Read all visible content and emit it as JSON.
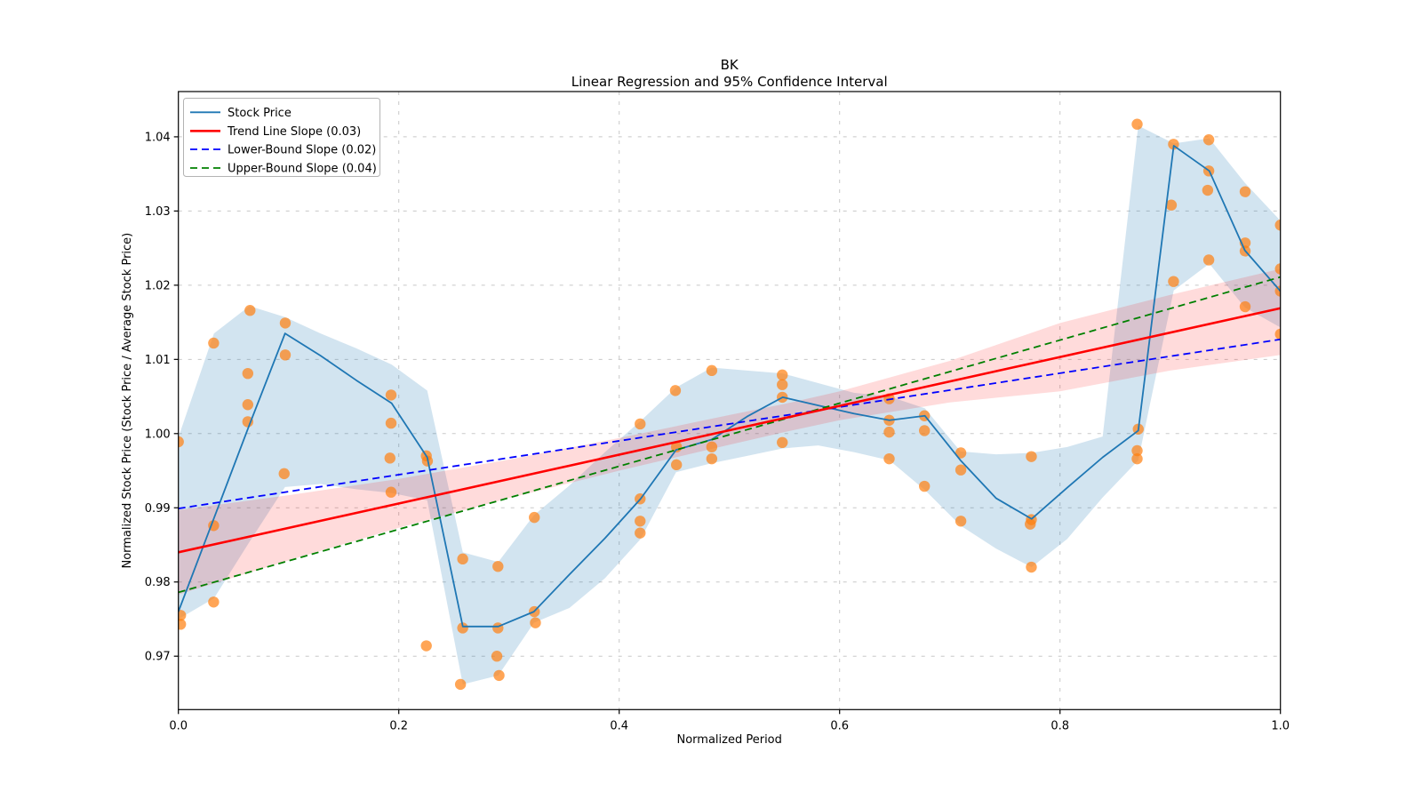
{
  "title": {
    "line1": "BK",
    "line2": "Linear Regression and 95% Confidence Interval"
  },
  "axes": {
    "xlabel": "Normalized Period",
    "ylabel": "Normalized Stock Price (Stock Price / Average Stock Price)",
    "x_tick_labels": [
      "0.0",
      "0.2",
      "0.4",
      "0.6",
      "0.8",
      "1.0"
    ],
    "x_tick_values": [
      0,
      0.2,
      0.4,
      0.6,
      0.8,
      1.0
    ],
    "x_grid_values": [
      0.2,
      0.4,
      0.6,
      0.8
    ],
    "y_tick_labels": [
      "0.97",
      "0.98",
      "0.99",
      "1.00",
      "1.01",
      "1.02",
      "1.03",
      "1.04"
    ],
    "y_tick_values": [
      0.97,
      0.98,
      0.99,
      1.0,
      1.01,
      1.02,
      1.03,
      1.04
    ],
    "xlim": [
      0,
      1
    ],
    "ylim": [
      0.9628,
      1.0461
    ],
    "grid": "dashed"
  },
  "legend": {
    "position": "upper-left",
    "items": [
      {
        "label": "Stock Price",
        "color": "#1f77b4",
        "dash": "solid",
        "width": 1.8
      },
      {
        "label": "Trend Line Slope (0.03)",
        "color": "#ff0000",
        "dash": "solid",
        "width": 2.6
      },
      {
        "label": "Lower-Bound Slope (0.02)",
        "color": "#0000ff",
        "dash": "dashed",
        "width": 1.8
      },
      {
        "label": "Upper-Bound Slope (0.04)",
        "color": "#008000",
        "dash": "dashed",
        "width": 1.8
      }
    ]
  },
  "colors": {
    "stock_line": "#1f77b4",
    "scatter": "#ff7f0e",
    "trend_line": "#ff0000",
    "lower_bound": "#0000ff",
    "upper_bound": "#008000",
    "stock_band_fill": "rgba(31,119,180,0.20)",
    "trend_band_fill": "rgba(255,0,0,0.14)",
    "grid": "#c8c8c8",
    "spine": "#000000",
    "background": "#ffffff"
  },
  "chart_data": {
    "type": "line",
    "title": "BK — Linear Regression and 95% Confidence Interval",
    "xlabel": "Normalized Period",
    "ylabel": "Normalized Stock Price (Stock Price / Average Stock Price)",
    "xlim": [
      0,
      1
    ],
    "ylim": [
      0.9628,
      1.0461
    ],
    "stock_price_line": {
      "x": [
        0.0,
        0.0323,
        0.0645,
        0.0968,
        0.129,
        0.1613,
        0.1935,
        0.2258,
        0.2581,
        0.2903,
        0.3226,
        0.3548,
        0.3871,
        0.4194,
        0.4516,
        0.4839,
        0.5161,
        0.5484,
        0.5806,
        0.6129,
        0.6452,
        0.6774,
        0.7097,
        0.7419,
        0.7742,
        0.8065,
        0.8387,
        0.871,
        0.9032,
        0.9355,
        0.9677,
        1.0
      ],
      "y": [
        0.976,
        0.9886,
        1.0012,
        1.0135,
        1.0105,
        1.0072,
        1.0041,
        0.9968,
        0.974,
        0.974,
        0.976,
        0.981,
        0.9859,
        0.9912,
        0.9978,
        0.9992,
        1.0023,
        1.0049,
        1.0038,
        1.0027,
        1.0018,
        1.0024,
        0.9964,
        0.9913,
        0.9885,
        0.9927,
        0.9968,
        1.0004,
        1.0388,
        1.0354,
        1.0247,
        1.0192
      ]
    },
    "stock_price_band": {
      "x": [
        0.0,
        0.0323,
        0.0645,
        0.0968,
        0.129,
        0.1613,
        0.1935,
        0.2258,
        0.2581,
        0.2903,
        0.3226,
        0.3548,
        0.3871,
        0.4194,
        0.4516,
        0.4839,
        0.5161,
        0.5484,
        0.5806,
        0.6129,
        0.6452,
        0.6774,
        0.7097,
        0.7419,
        0.7742,
        0.8065,
        0.8387,
        0.871,
        0.9032,
        0.9355,
        0.9677,
        1.0
      ],
      "upper": [
        0.9995,
        1.0135,
        1.0172,
        1.0157,
        1.0135,
        1.0115,
        1.0093,
        1.0058,
        0.984,
        0.9827,
        0.989,
        0.993,
        0.9975,
        1.0017,
        1.0062,
        1.0089,
        1.0085,
        1.0081,
        1.0068,
        1.0055,
        1.005,
        1.0034,
        0.9976,
        0.9972,
        0.9974,
        0.9982,
        0.9996,
        1.0415,
        1.0391,
        1.0398,
        1.0338,
        1.0287
      ],
      "lower": [
        0.975,
        0.9778,
        0.9854,
        0.9928,
        0.9932,
        0.9925,
        0.992,
        0.991,
        0.9662,
        0.9674,
        0.9745,
        0.9765,
        0.9805,
        0.9858,
        0.9948,
        0.996,
        0.997,
        0.998,
        0.9984,
        0.9975,
        0.9964,
        0.9924,
        0.9876,
        0.9845,
        0.982,
        0.9858,
        0.9914,
        0.9964,
        1.0193,
        1.0229,
        1.017,
        1.0143
      ]
    },
    "scatter_points": [
      [
        0.0,
        0.9989
      ],
      [
        0.002,
        0.9755
      ],
      [
        0.002,
        0.9743
      ],
      [
        0.032,
        1.0122
      ],
      [
        0.032,
        0.9876
      ],
      [
        0.032,
        0.9773
      ],
      [
        0.065,
        1.0166
      ],
      [
        0.063,
        1.0081
      ],
      [
        0.063,
        1.0039
      ],
      [
        0.063,
        1.0016
      ],
      [
        0.097,
        1.0149
      ],
      [
        0.097,
        1.0106
      ],
      [
        0.096,
        0.9946
      ],
      [
        0.193,
        1.0052
      ],
      [
        0.193,
        1.0014
      ],
      [
        0.192,
        0.9967
      ],
      [
        0.193,
        0.9921
      ],
      [
        0.225,
        0.997
      ],
      [
        0.226,
        0.9963
      ],
      [
        0.225,
        0.9714
      ],
      [
        0.258,
        0.9831
      ],
      [
        0.258,
        0.9738
      ],
      [
        0.256,
        0.9662
      ],
      [
        0.29,
        0.9821
      ],
      [
        0.29,
        0.9738
      ],
      [
        0.289,
        0.97
      ],
      [
        0.291,
        0.9674
      ],
      [
        0.323,
        0.9887
      ],
      [
        0.323,
        0.976
      ],
      [
        0.324,
        0.9745
      ],
      [
        0.419,
        1.0013
      ],
      [
        0.419,
        0.9912
      ],
      [
        0.419,
        0.9882
      ],
      [
        0.419,
        0.9866
      ],
      [
        0.451,
        1.0058
      ],
      [
        0.452,
        0.9982
      ],
      [
        0.452,
        0.9958
      ],
      [
        0.484,
        1.0085
      ],
      [
        0.484,
        0.9982
      ],
      [
        0.484,
        0.9966
      ],
      [
        0.548,
        1.0079
      ],
      [
        0.548,
        1.0066
      ],
      [
        0.548,
        1.0049
      ],
      [
        0.548,
        0.9988
      ],
      [
        0.645,
        1.0047
      ],
      [
        0.645,
        1.0018
      ],
      [
        0.645,
        1.0002
      ],
      [
        0.645,
        0.9966
      ],
      [
        0.677,
        1.0024
      ],
      [
        0.677,
        1.0004
      ],
      [
        0.677,
        0.9929
      ],
      [
        0.71,
        0.9974
      ],
      [
        0.71,
        0.9951
      ],
      [
        0.71,
        0.9882
      ],
      [
        0.774,
        0.9969
      ],
      [
        0.774,
        0.9884
      ],
      [
        0.773,
        0.9878
      ],
      [
        0.774,
        0.982
      ],
      [
        0.87,
        1.0417
      ],
      [
        0.871,
        1.0006
      ],
      [
        0.87,
        0.9977
      ],
      [
        0.87,
        0.9966
      ],
      [
        0.903,
        1.039
      ],
      [
        0.901,
        1.0308
      ],
      [
        0.903,
        1.0205
      ],
      [
        0.935,
        1.0396
      ],
      [
        0.935,
        1.0354
      ],
      [
        0.934,
        1.0328
      ],
      [
        0.935,
        1.0234
      ],
      [
        0.968,
        1.0326
      ],
      [
        0.968,
        1.0257
      ],
      [
        0.968,
        1.0246
      ],
      [
        0.968,
        1.0171
      ],
      [
        1.0,
        1.0281
      ],
      [
        1.0,
        1.0222
      ],
      [
        1.0,
        1.0192
      ],
      [
        1.0,
        1.0134
      ]
    ],
    "trend_line": {
      "slope_label": 0.03,
      "x": [
        0,
        1
      ],
      "y": [
        0.984,
        1.0169
      ]
    },
    "lower_bound_line": {
      "slope_label": 0.02,
      "x": [
        0,
        1
      ],
      "y": [
        0.9899,
        1.0127
      ]
    },
    "upper_bound_line": {
      "slope_label": 0.04,
      "x": [
        0,
        1
      ],
      "y": [
        0.9786,
        1.0211
      ]
    },
    "confidence_band": {
      "x": [
        0.0,
        0.1,
        0.2,
        0.3,
        0.4,
        0.5,
        0.55,
        0.6,
        0.7,
        0.8,
        0.9,
        1.0
      ],
      "upper": [
        0.9897,
        0.9917,
        0.9939,
        0.9965,
        0.9994,
        1.0025,
        1.004,
        1.0057,
        1.0098,
        1.0149,
        1.0187,
        1.0222
      ],
      "lower": [
        0.9783,
        0.9829,
        0.9873,
        0.9913,
        0.995,
        0.9985,
        1.0002,
        1.0018,
        1.0042,
        1.0057,
        1.0085,
        1.0106
      ]
    }
  }
}
